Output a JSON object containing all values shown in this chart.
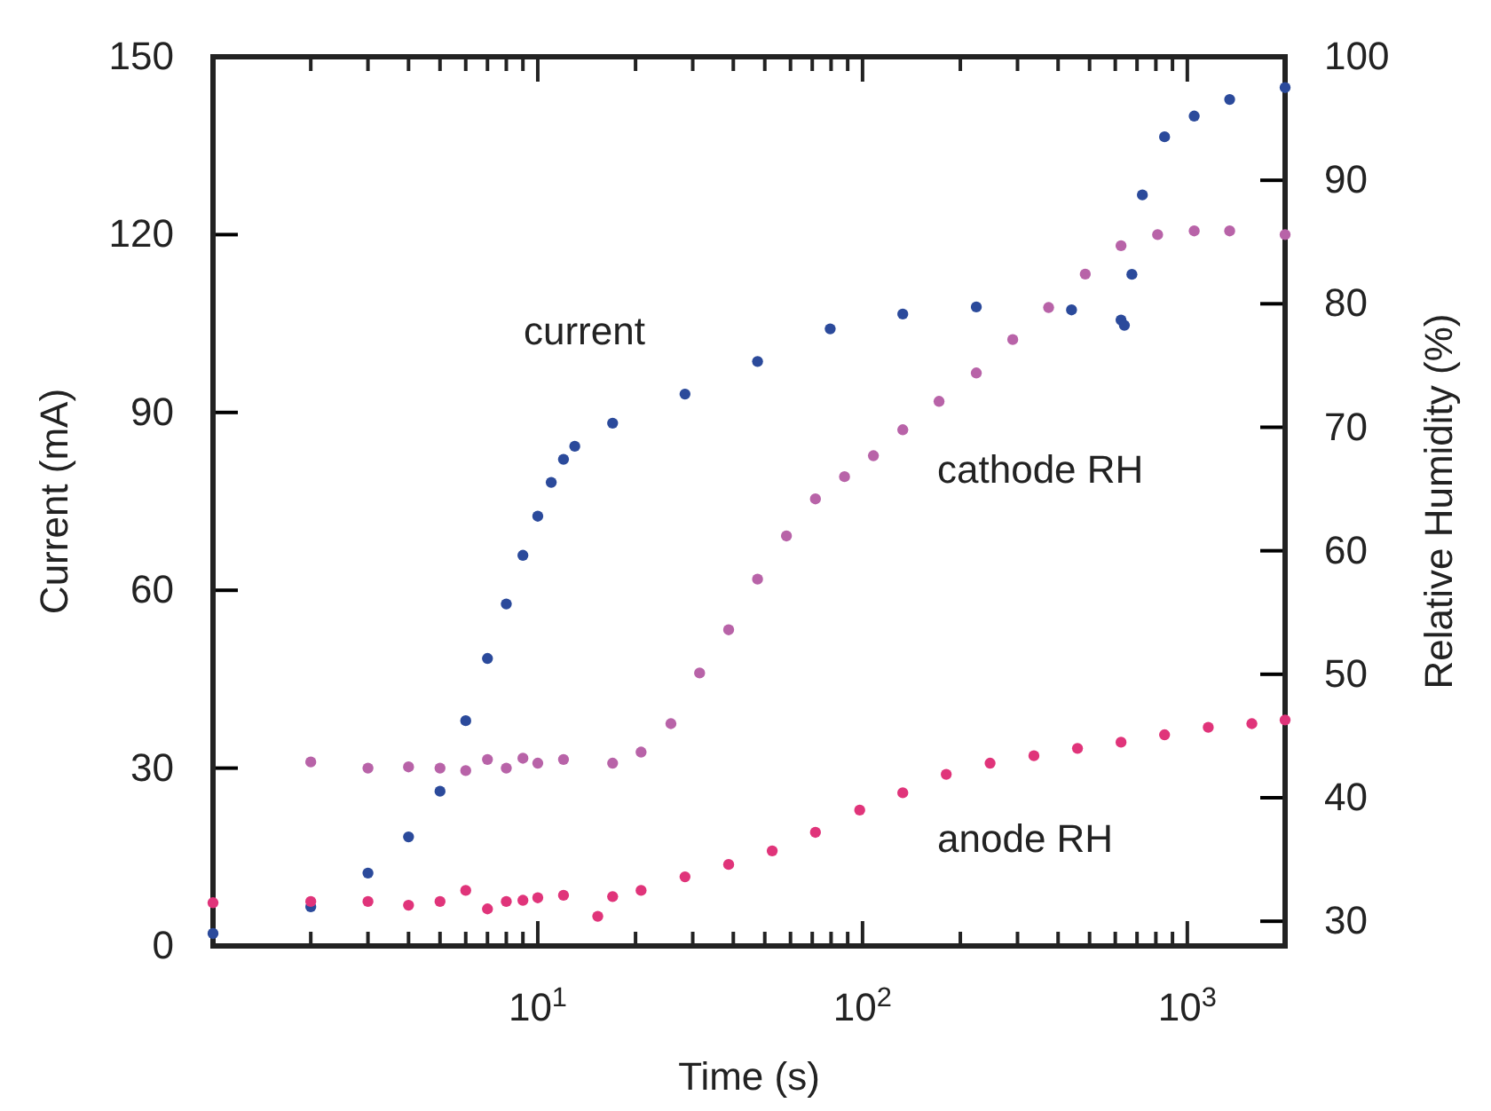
{
  "chart_data": {
    "type": "scatter",
    "xlabel": "Time (s)",
    "ylabel": "Current (mA)",
    "y2label": "Relative Humidity (%)",
    "log": "x",
    "marker": "circle",
    "grid": false,
    "legend": false,
    "xlim": [
      1,
      2000
    ],
    "xticks": [
      {
        "value": 2,
        "label": null
      },
      {
        "value": 3,
        "label": null
      },
      {
        "value": 4,
        "label": null
      },
      {
        "value": 5,
        "label": null
      },
      {
        "value": 6,
        "label": null
      },
      {
        "value": 7,
        "label": null
      },
      {
        "value": 8,
        "label": null
      },
      {
        "value": 9,
        "label": null
      },
      {
        "value": 10,
        "label": "10$^{1}$"
      },
      {
        "value": 20,
        "label": null
      },
      {
        "value": 30,
        "label": null
      },
      {
        "value": 40,
        "label": null
      },
      {
        "value": 50,
        "label": null
      },
      {
        "value": 60,
        "label": null
      },
      {
        "value": 70,
        "label": null
      },
      {
        "value": 80,
        "label": null
      },
      {
        "value": 90,
        "label": null
      },
      {
        "value": 100,
        "label": "10$^{2}$"
      },
      {
        "value": 200,
        "label": null
      },
      {
        "value": 300,
        "label": null
      },
      {
        "value": 400,
        "label": null
      },
      {
        "value": 500,
        "label": null
      },
      {
        "value": 600,
        "label": null
      },
      {
        "value": 700,
        "label": null
      },
      {
        "value": 800,
        "label": null
      },
      {
        "value": 900,
        "label": null
      },
      {
        "value": 1000,
        "label": "10$^{3}$"
      }
    ],
    "ylim": [
      0,
      150
    ],
    "yticks": [
      0,
      30,
      60,
      90,
      120,
      150
    ],
    "y2lim": [
      28,
      100
    ],
    "y2ticks": [
      30,
      40,
      50,
      60,
      70,
      80,
      90,
      100
    ],
    "series": [
      {
        "name": "current",
        "color": "#2b4a9b",
        "x": [
          1,
          2,
          3,
          4,
          5,
          6,
          7,
          8,
          9,
          10,
          11,
          12,
          13,
          17,
          28.4,
          47.5,
          79.5,
          133,
          224,
          440,
          625,
          640,
          675,
          727,
          851,
          1050,
          1350,
          2000
        ],
        "values": [
          2.1,
          6.6,
          12.3,
          18.4,
          26.1,
          38,
          48.5,
          57.7,
          65.9,
          72.5,
          78.2,
          82.1,
          84.3,
          88.2,
          93.1,
          98.6,
          104.1,
          106.6,
          107.8,
          107.3,
          105.6,
          104.7,
          113.3,
          126.7,
          136.5,
          140,
          142.8,
          144.8
        ]
      },
      {
        "name": "cathode RH",
        "color": "#b863a8",
        "axis": "y2",
        "x": [
          2,
          3,
          4,
          5,
          6,
          7,
          8,
          9,
          10,
          12,
          17,
          20.8,
          25.7,
          31.5,
          38.7,
          47.5,
          58.3,
          71.6,
          88,
          108,
          133,
          172,
          224,
          290,
          374,
          485,
          625,
          810,
          1050,
          1350,
          2000
        ],
        "values": [
          42.9,
          42.4,
          42.5,
          42.4,
          42.2,
          43.1,
          42.4,
          43.2,
          42.8,
          43.1,
          42.8,
          43.7,
          46,
          50.1,
          53.6,
          57.7,
          61.2,
          64.2,
          66,
          67.7,
          69.8,
          72.1,
          74.4,
          77.1,
          79.7,
          82.4,
          84.7,
          85.6,
          85.9,
          85.9,
          85.6
        ]
      },
      {
        "name": "anode RH",
        "color": "#e0347a",
        "axis": "y2",
        "x": [
          1,
          2,
          3,
          4,
          5,
          6,
          7,
          8,
          9,
          10,
          12,
          15.3,
          17,
          20.8,
          28.4,
          38.7,
          52.7,
          71.6,
          98,
          133,
          181,
          247,
          337,
          459,
          625,
          851,
          1160,
          1580,
          2000
        ],
        "values": [
          31.5,
          31.6,
          31.6,
          31.3,
          31.6,
          32.5,
          31,
          31.6,
          31.7,
          31.9,
          32.1,
          30.4,
          32,
          32.5,
          33.6,
          34.6,
          35.7,
          37.2,
          39,
          40.4,
          41.9,
          42.8,
          43.4,
          44,
          44.5,
          45.1,
          45.7,
          46,
          46.3
        ]
      }
    ]
  }
}
